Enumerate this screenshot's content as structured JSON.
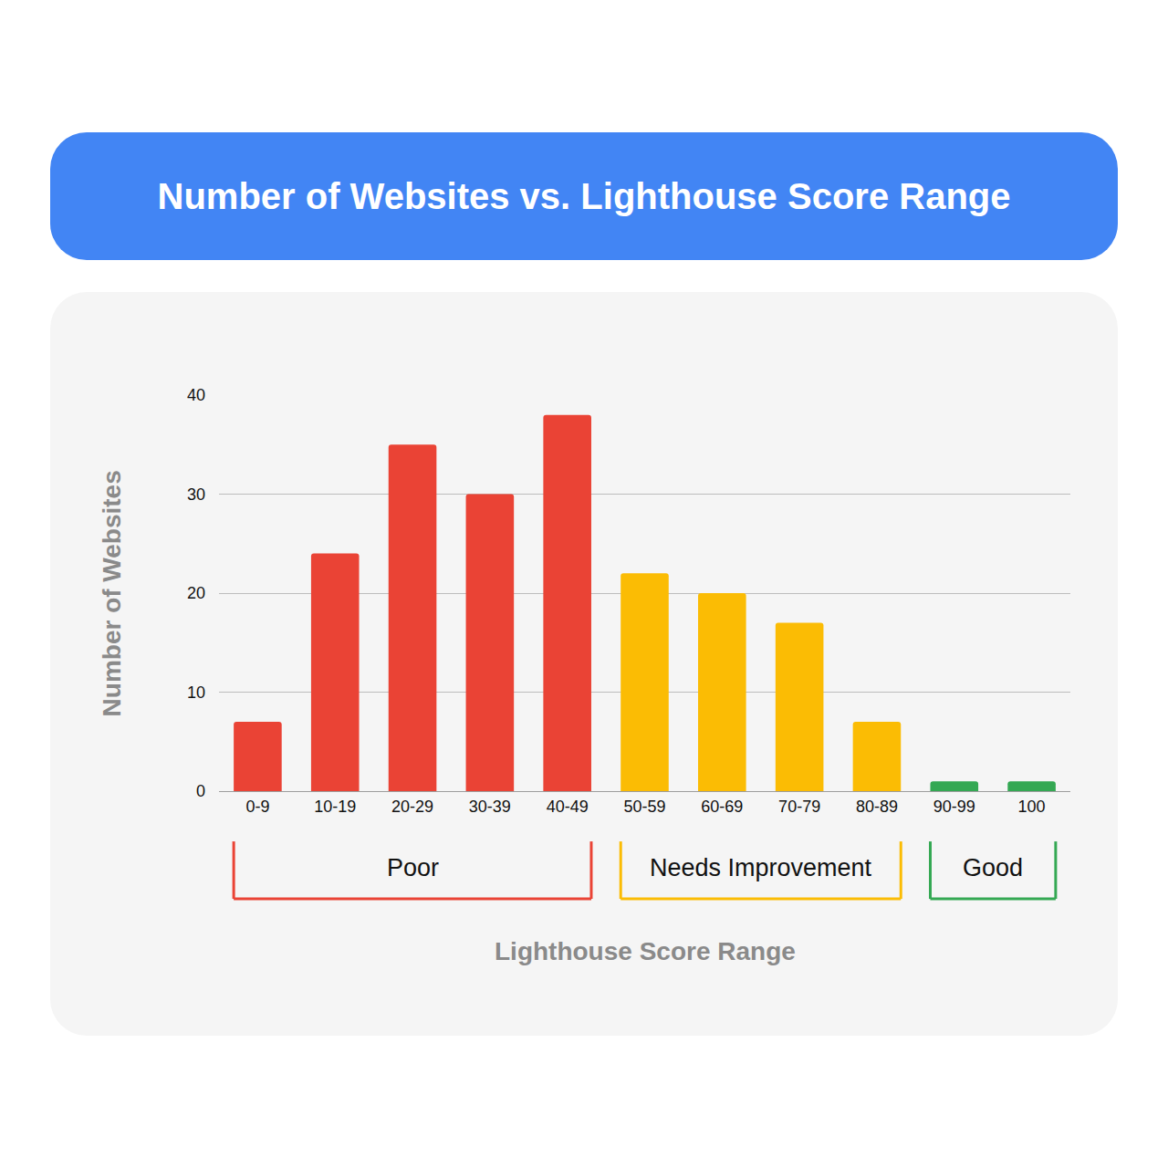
{
  "chart_data": {
    "type": "bar",
    "title": "Number of Websites vs. Lighthouse Score Range",
    "x_label": "Lighthouse Score Range",
    "y_label": "Number of Websites",
    "categories": [
      "0-9",
      "10-19",
      "20-29",
      "30-39",
      "40-49",
      "50-59",
      "60-69",
      "70-79",
      "80-89",
      "90-99",
      "100"
    ],
    "values": [
      7,
      24,
      35,
      30,
      38,
      22,
      20,
      17,
      7,
      1,
      1
    ],
    "colors": [
      "#ea4335",
      "#ea4335",
      "#ea4335",
      "#ea4335",
      "#ea4335",
      "#fbbc04",
      "#fbbc04",
      "#fbbc04",
      "#fbbc04",
      "#34a853",
      "#34a853"
    ],
    "ylim": [
      0,
      40
    ],
    "yticks": [
      0,
      10,
      20,
      30,
      40
    ],
    "grid": true,
    "groups": [
      {
        "label": "Poor",
        "start": "0-9",
        "end": "40-49",
        "color": "#ea4335"
      },
      {
        "label": "Needs Improvement",
        "start": "50-59",
        "end": "80-89",
        "color": "#fbbc04"
      },
      {
        "label": "Good",
        "start": "90-99",
        "end": "100",
        "color": "#34a853"
      }
    ]
  }
}
